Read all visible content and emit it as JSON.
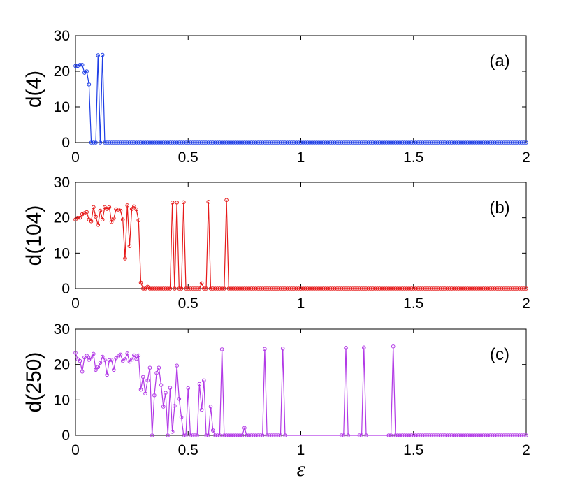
{
  "chart_data": [
    {
      "type": "line",
      "panel_label": "(a)",
      "ylabel": "d(4)",
      "xlim": [
        0,
        2
      ],
      "ylim": [
        0,
        30
      ],
      "xticks": [
        "0",
        "0.5",
        "1",
        "1.5",
        "2"
      ],
      "yticks": [
        "0",
        "10",
        "20",
        "30"
      ],
      "grid": false,
      "series": [
        {
          "color": "#1f3fe6",
          "marker": "open-circle",
          "x": [
            0.0,
            0.01,
            0.02,
            0.03,
            0.04,
            0.05,
            0.06,
            0.07,
            0.08,
            0.09,
            0.1,
            0.11,
            0.12,
            0.13
          ],
          "y": [
            21.5,
            21.5,
            21.8,
            21.8,
            19.6,
            20.0,
            16.3,
            0.0,
            0.0,
            0.0,
            24.5,
            0.0,
            24.6,
            0.0
          ],
          "tail_zero_step": 0.01
        }
      ]
    },
    {
      "type": "line",
      "panel_label": "(b)",
      "ylabel": "d(104)",
      "xlim": [
        0,
        2
      ],
      "ylim": [
        0,
        30
      ],
      "xticks": [
        "0",
        "0.5",
        "1",
        "1.5",
        "2"
      ],
      "yticks": [
        "0",
        "10",
        "20",
        "30"
      ],
      "grid": false,
      "series": [
        {
          "color": "#e61a1a",
          "marker": "open-circle",
          "x": [
            0.0,
            0.01,
            0.02,
            0.03,
            0.04,
            0.05,
            0.06,
            0.07,
            0.08,
            0.09,
            0.1,
            0.11,
            0.12,
            0.13,
            0.14,
            0.15,
            0.16,
            0.17,
            0.18,
            0.19,
            0.2,
            0.21,
            0.22,
            0.23,
            0.24,
            0.25,
            0.26,
            0.27,
            0.28,
            0.29,
            0.3,
            0.31,
            0.32,
            0.33,
            0.34,
            0.35,
            0.36,
            0.37,
            0.38,
            0.39,
            0.4,
            0.41,
            0.42,
            0.43,
            0.44,
            0.45,
            0.46,
            0.47,
            0.48,
            0.49,
            0.5,
            0.51,
            0.52,
            0.53,
            0.54,
            0.55,
            0.56,
            0.57,
            0.58,
            0.59,
            0.6,
            0.61,
            0.62,
            0.63,
            0.64,
            0.65,
            0.66,
            0.67,
            0.68
          ],
          "y": [
            19.5,
            20.0,
            20.0,
            21.0,
            21.3,
            21.6,
            19.5,
            19.0,
            23.0,
            20.3,
            18.0,
            22.0,
            19.5,
            23.0,
            22.5,
            23.0,
            18.8,
            19.8,
            22.4,
            22.3,
            22.0,
            19.5,
            8.5,
            23.5,
            12.0,
            22.5,
            23.2,
            22.4,
            19.3,
            1.7,
            0.0,
            0.0,
            0.5,
            0.0,
            0.0,
            0.0,
            0.0,
            0.0,
            0.0,
            0.0,
            0.0,
            0.0,
            0.0,
            24.3,
            0.0,
            24.3,
            0.0,
            0.0,
            24.4,
            0.0,
            0.0,
            0.0,
            0.0,
            0.0,
            0.0,
            0.0,
            1.5,
            0.0,
            0.0,
            24.5,
            0.0,
            0.0,
            0.0,
            0.0,
            0.0,
            0.0,
            0.0,
            25.0,
            0.0
          ],
          "tail_zero_step": 0.01
        }
      ]
    },
    {
      "type": "line",
      "panel_label": "(c)",
      "ylabel": "d(250)",
      "xlabel": "ε",
      "xlim": [
        0,
        2
      ],
      "ylim": [
        0,
        30
      ],
      "xticks": [
        "0",
        "0.5",
        "1",
        "1.5",
        "2"
      ],
      "yticks": [
        "0",
        "10",
        "20",
        "30"
      ],
      "grid": false,
      "series": [
        {
          "color": "#b23ae6",
          "marker": "open-circle",
          "x": [
            0.0,
            0.01,
            0.02,
            0.03,
            0.04,
            0.05,
            0.06,
            0.07,
            0.08,
            0.09,
            0.1,
            0.11,
            0.12,
            0.13,
            0.14,
            0.15,
            0.16,
            0.17,
            0.18,
            0.19,
            0.2,
            0.21,
            0.22,
            0.23,
            0.24,
            0.25,
            0.26,
            0.27,
            0.28,
            0.29,
            0.3,
            0.31,
            0.32,
            0.33,
            0.34,
            0.35,
            0.36,
            0.37,
            0.38,
            0.39,
            0.4,
            0.41,
            0.42,
            0.43,
            0.44,
            0.45,
            0.46,
            0.47,
            0.48,
            0.49,
            0.5,
            0.51,
            0.52,
            0.53,
            0.54,
            0.55,
            0.56,
            0.57,
            0.58,
            0.59,
            0.6,
            0.61,
            0.62,
            0.63,
            0.64,
            0.65,
            0.66,
            0.67,
            0.68,
            0.69,
            0.7,
            0.71,
            0.72,
            0.73,
            0.74,
            0.75,
            0.76,
            0.77,
            0.78,
            0.79,
            0.8,
            0.81,
            0.82,
            0.83,
            0.84,
            0.85,
            0.86,
            0.87,
            0.88,
            0.89,
            0.9,
            0.91,
            0.92,
            0.93,
            1.18,
            1.19,
            1.2,
            1.21,
            1.26,
            1.27,
            1.28,
            1.29,
            1.39,
            1.4,
            1.41,
            1.42
          ],
          "y": [
            23.3,
            21.5,
            21.0,
            18.0,
            22.0,
            22.5,
            21.3,
            22.0,
            23.0,
            18.5,
            19.3,
            20.5,
            22.2,
            21.3,
            17.1,
            21.2,
            21.3,
            18.5,
            21.8,
            22.3,
            22.8,
            21.0,
            21.5,
            23.1,
            20.8,
            21.4,
            22.6,
            21.6,
            22.6,
            12.9,
            16.5,
            11.8,
            15.5,
            19.1,
            0.0,
            11.3,
            17.6,
            19.1,
            14.2,
            8.1,
            12.0,
            0.0,
            13.4,
            1.0,
            8.3,
            19.7,
            10.3,
            5.1,
            0.0,
            0.0,
            13.3,
            0.0,
            0.0,
            0.0,
            0.0,
            14.5,
            7.2,
            15.5,
            0.0,
            0.0,
            8.1,
            1.4,
            0.0,
            0.0,
            0.0,
            24.3,
            0.0,
            0.0,
            0.0,
            0.0,
            0.0,
            0.0,
            0.0,
            0.0,
            0.0,
            2.1,
            0.0,
            0.0,
            0.0,
            0.0,
            0.0,
            0.0,
            0.0,
            0.0,
            24.4,
            0.0,
            0.0,
            0.0,
            0.0,
            0.0,
            0.0,
            0.0,
            24.5,
            0.0,
            0.0,
            0.0,
            24.7,
            0.0,
            0.0,
            0.0,
            24.8,
            0.0,
            0.0,
            0.0,
            25.1,
            0.0
          ],
          "tail_zero_step": 0.01
        }
      ]
    }
  ]
}
